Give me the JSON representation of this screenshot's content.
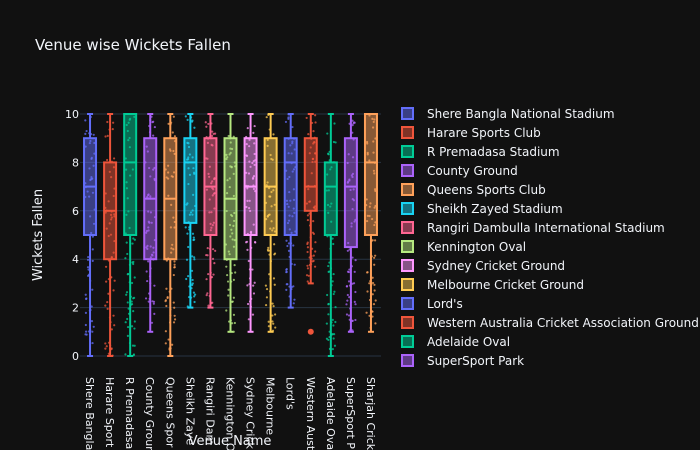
{
  "chart_data": {
    "type": "box",
    "title": "Venue wise Wickets Fallen",
    "xlabel": "Venue Name",
    "ylabel": "Wickets Fallen",
    "ylim": [
      0,
      10
    ],
    "yticks": [
      0,
      2,
      4,
      6,
      8,
      10
    ],
    "grid": true,
    "legend_position": "right",
    "series": [
      {
        "name": "Shere Bangla National Stadium",
        "tick_label": "Shere Bangla",
        "color": "#636efa",
        "min": 0,
        "q1": 5,
        "median": 7,
        "q3": 9,
        "max": 10,
        "outliers": []
      },
      {
        "name": "Harare Sports Club",
        "tick_label": "Harare Sport",
        "color": "#EF553B",
        "min": 0,
        "q1": 4,
        "median": 6,
        "q3": 8,
        "max": 10,
        "outliers": []
      },
      {
        "name": "R Premadasa Stadium",
        "tick_label": "R Premadasa",
        "color": "#00cc96",
        "min": 0,
        "q1": 5,
        "median": 8,
        "q3": 10,
        "max": 10,
        "outliers": []
      },
      {
        "name": "County Ground",
        "tick_label": "County Groun",
        "color": "#ab63fa",
        "min": 1,
        "q1": 4,
        "median": 6.5,
        "q3": 9,
        "max": 10,
        "outliers": []
      },
      {
        "name": "Queens Sports Club",
        "tick_label": "Queens Spor",
        "color": "#FFA15A",
        "min": 0,
        "q1": 4,
        "median": 6.5,
        "q3": 9,
        "max": 10,
        "outliers": []
      },
      {
        "name": "Sheikh Zayed Stadium",
        "tick_label": "Sheikh Zaye",
        "color": "#19d3f3",
        "min": 2,
        "q1": 5.5,
        "median": 8,
        "q3": 9,
        "max": 10,
        "outliers": []
      },
      {
        "name": "Rangiri Dambulla International Stadium",
        "tick_label": "Rangiri Dam",
        "color": "#FF6692",
        "min": 2,
        "q1": 5,
        "median": 7,
        "q3": 9,
        "max": 10,
        "outliers": []
      },
      {
        "name": "Kennington Oval",
        "tick_label": "Kennington O",
        "color": "#B6E880",
        "min": 1,
        "q1": 4,
        "median": 6.5,
        "q3": 9,
        "max": 10,
        "outliers": []
      },
      {
        "name": "Sydney Cricket Ground",
        "tick_label": "Sydney Crick",
        "color": "#FF97FF",
        "min": 1,
        "q1": 5,
        "median": 7,
        "q3": 9,
        "max": 10,
        "outliers": []
      },
      {
        "name": "Melbourne Cricket Ground",
        "tick_label": "Melbourne",
        "color": "#FECB52",
        "min": 1,
        "q1": 5,
        "median": 7,
        "q3": 9,
        "max": 10,
        "outliers": []
      },
      {
        "name": "Lord's",
        "tick_label": "Lord's",
        "color": "#636efa",
        "min": 2,
        "q1": 5,
        "median": 8,
        "q3": 9,
        "max": 10,
        "outliers": []
      },
      {
        "name": "Western Australia Cricket Association Ground",
        "tick_label": "Western Aust",
        "color": "#EF553B",
        "min": 3,
        "q1": 6,
        "median": 7,
        "q3": 9,
        "max": 10,
        "outliers": [
          1
        ]
      },
      {
        "name": "Adelaide Oval",
        "tick_label": "Adelaide Ova",
        "color": "#00cc96",
        "min": 0,
        "q1": 5,
        "median": 7,
        "q3": 8,
        "max": 10,
        "outliers": []
      },
      {
        "name": "SuperSport Park",
        "tick_label": "SuperSport P",
        "color": "#ab63fa",
        "min": 1,
        "q1": 4.5,
        "median": 7,
        "q3": 9,
        "max": 10,
        "outliers": []
      },
      {
        "name": "Sharjah Cricket Stadium",
        "tick_label": "Sharjah Crick",
        "color": "#FFA15A",
        "min": 1,
        "q1": 5,
        "median": 8,
        "q3": 10,
        "max": 10,
        "outliers": [],
        "in_legend": false
      }
    ]
  }
}
